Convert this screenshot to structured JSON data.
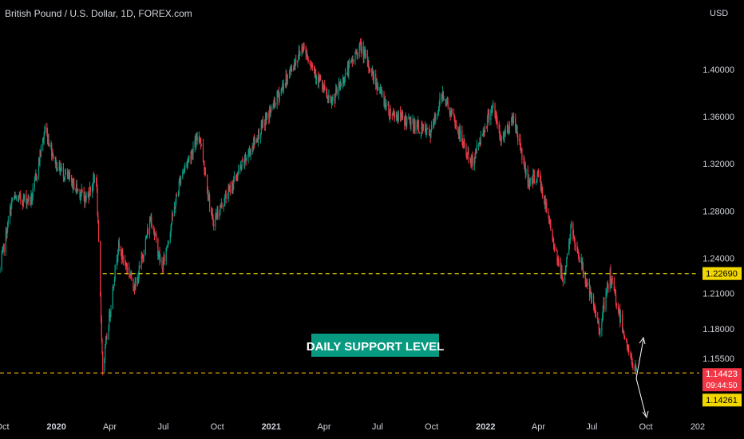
{
  "chart_data": {
    "type": "candlestick",
    "title": "British Pound / U.S. Dollar, 1D, FOREX.com",
    "currency_label": "USD",
    "y_axis": {
      "ticks": [
        "1.40000",
        "1.36000",
        "1.32000",
        "1.28000",
        "1.24000",
        "1.21000",
        "1.18000",
        "1.15500"
      ],
      "tick_values": [
        1.4,
        1.36,
        1.32,
        1.28,
        1.24,
        1.21,
        1.18,
        1.155
      ],
      "range": [
        1.125,
        1.45
      ],
      "position": "right"
    },
    "x_axis": {
      "labels": [
        "Oct",
        "2020",
        "Apr",
        "Jul",
        "Oct",
        "2021",
        "Apr",
        "Jul",
        "Oct",
        "2022",
        "Apr",
        "Jul",
        "Oct",
        "202"
      ],
      "bold_labels": [
        "2020",
        "2021",
        "2022"
      ],
      "range": [
        "2019-09-27",
        "2022-12-31"
      ]
    },
    "levels": [
      {
        "price": 1.2269,
        "label": "1.22690",
        "style": "dashed",
        "color": "#e6d200",
        "start": "2020-03-20"
      },
      {
        "price": 1.14261,
        "label": "1.14261",
        "style": "dashed",
        "color": "#e6a300",
        "start": "2019-09-27"
      }
    ],
    "current_price": {
      "label": "1.14423",
      "countdown": "09:44:50",
      "color": "#f23645"
    },
    "annotation": {
      "text": "DAILY SUPPORT LEVEL",
      "color": "#089981"
    },
    "arrows": [
      "up",
      "down"
    ],
    "bull_color": "#089981",
    "bear_color": "#f23645",
    "anchors": [
      [
        "2019-09-27",
        1.23
      ],
      [
        "2019-10-18",
        1.29
      ],
      [
        "2019-11-20",
        1.29
      ],
      [
        "2019-12-13",
        1.35
      ],
      [
        "2019-12-31",
        1.32
      ],
      [
        "2020-02-20",
        1.29
      ],
      [
        "2020-03-09",
        1.31
      ],
      [
        "2020-03-20",
        1.145
      ],
      [
        "2020-04-15",
        1.25
      ],
      [
        "2020-05-15",
        1.215
      ],
      [
        "2020-06-10",
        1.275
      ],
      [
        "2020-06-29",
        1.23
      ],
      [
        "2020-07-31",
        1.31
      ],
      [
        "2020-09-01",
        1.345
      ],
      [
        "2020-09-23",
        1.27
      ],
      [
        "2020-12-31",
        1.365
      ],
      [
        "2021-02-24",
        1.42
      ],
      [
        "2021-04-12",
        1.37
      ],
      [
        "2021-06-01",
        1.42
      ],
      [
        "2021-07-20",
        1.365
      ],
      [
        "2021-09-29",
        1.345
      ],
      [
        "2021-10-20",
        1.38
      ],
      [
        "2021-12-08",
        1.32
      ],
      [
        "2022-01-13",
        1.37
      ],
      [
        "2022-01-27",
        1.34
      ],
      [
        "2022-02-18",
        1.36
      ],
      [
        "2022-03-14",
        1.305
      ],
      [
        "2022-04-01",
        1.31
      ],
      [
        "2022-05-13",
        1.22
      ],
      [
        "2022-05-27",
        1.265
      ],
      [
        "2022-07-14",
        1.18
      ],
      [
        "2022-08-01",
        1.225
      ],
      [
        "2022-09-07",
        1.15
      ],
      [
        "2022-09-15",
        1.144
      ]
    ]
  }
}
